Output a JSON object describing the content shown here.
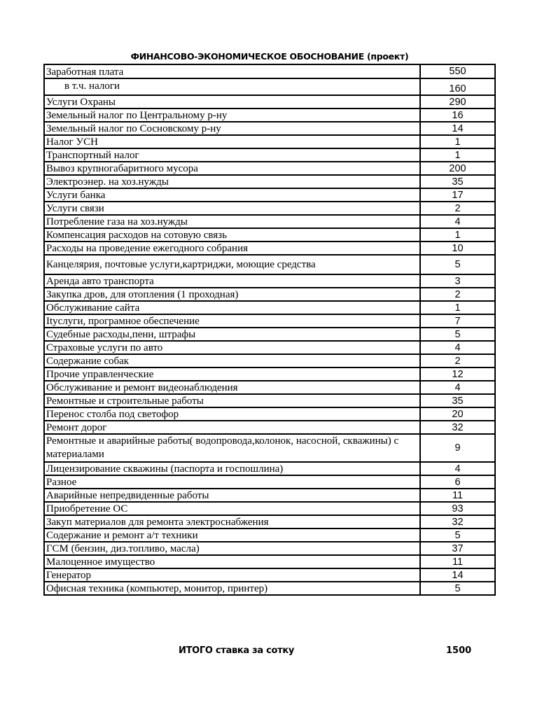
{
  "title": "ФИНАНСОВО-ЭКОНОМИЧЕСКОЕ ОБОСНОВАНИЕ   (проект)",
  "rows": [
    {
      "name": "Заработная плата",
      "value": "550"
    },
    {
      "name": "в т.ч. налоги",
      "value": "160"
    },
    {
      "name": "Услуги Охраны",
      "value": "290"
    },
    {
      "name": "Земельный налог по Центральному р-ну",
      "value": "16"
    },
    {
      "name": "Земельный налог по Сосновскому р-ну",
      "value": "14"
    },
    {
      "name": "Налог УСН",
      "value": "1"
    },
    {
      "name": "Транспортный налог",
      "value": "1"
    },
    {
      "name": "Вывоз крупногабаритного мусора",
      "value": "200"
    },
    {
      "name": "Электроэнер. на хоз.нужды",
      "value": "35"
    },
    {
      "name": "Услуги банка",
      "value": "17"
    },
    {
      "name": "Услуги связи",
      "value": "2"
    },
    {
      "name": "Потребление газа на хоз.нужды",
      "value": "4"
    },
    {
      "name": "Компенсация расходов на сотовую связь",
      "value": "1"
    },
    {
      "name": "Расходы на проведение ежегодного собрания",
      "value": "10"
    },
    {
      "name": "Канцелярия, почтовые услуги,картриджи, моющие средства",
      "value": "5"
    },
    {
      "name": "Аренда авто транспорта",
      "value": "3"
    },
    {
      "name": "Закупка дров, для отопления (1 проходная)",
      "value": "2"
    },
    {
      "name": "Обслуживание  сайта",
      "value": "1"
    },
    {
      "name": "Itуслуги, програмное обеспечение",
      "value": "7"
    },
    {
      "name": "Судебные расходы,пени, штрафы",
      "value": "5"
    },
    {
      "name": "Страховые услуги по авто",
      "value": "4"
    },
    {
      "name": "Содержание собак",
      "value": "2"
    },
    {
      "name": "Прочие управленческие",
      "value": "12"
    },
    {
      "name": "Обслуживание и ремонт видеонаблюдения",
      "value": "4"
    },
    {
      "name": "Ремонтные и строительные работы",
      "value": "35"
    },
    {
      "name": "Перенос столба под светофор",
      "value": "20"
    },
    {
      "name": "Ремонт дорог",
      "value": "32"
    },
    {
      "name": "Ремонтные и аварийные работы( водопровода,колонок, насосной, скважины) с материалами",
      "value": "9"
    },
    {
      "name": "Лицензирование скважины (паспорта и госпошлина)",
      "value": "4"
    },
    {
      "name": "Разное",
      "value": "6"
    },
    {
      "name": "Аварийные непредвиденные работы",
      "value": "11"
    },
    {
      "name": "Приобретение ОС",
      "value": "93"
    },
    {
      "name": "Закуп материалов для ремонта электроснабжения",
      "value": "32"
    },
    {
      "name": "Содержание и  ремонт а/т техники",
      "value": "5"
    },
    {
      "name": "ГСМ (бензин, диз.топливо, масла)",
      "value": "37"
    },
    {
      "name": "Малоценное имущество",
      "value": "11"
    },
    {
      "name": "Генератор",
      "value": "14"
    },
    {
      "name": "Офисная техника (компьютер, монитор, принтер)",
      "value": "5"
    }
  ],
  "total": {
    "label": "ИТОГО ставка за  сотку",
    "value": "1500"
  }
}
